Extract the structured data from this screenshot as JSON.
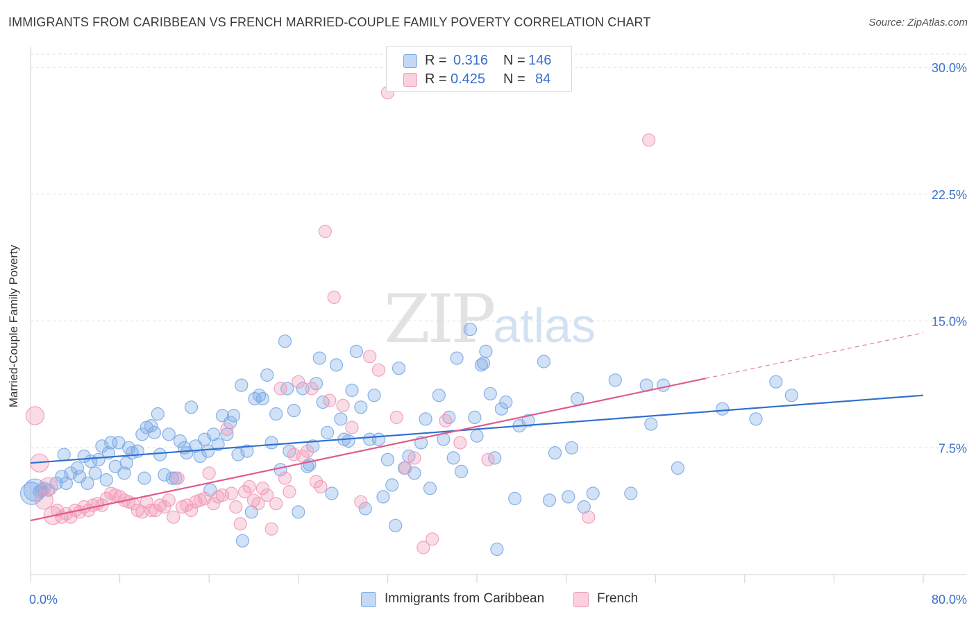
{
  "title": "IMMIGRANTS FROM CARIBBEAN VS FRENCH MARRIED-COUPLE FAMILY POVERTY CORRELATION CHART",
  "source": "Source: ZipAtlas.com",
  "watermark": {
    "zip": "ZIP",
    "atlas": "atlas"
  },
  "stats": [
    {
      "r_label": "R =",
      "r_value": "0.316",
      "n_label": "N =",
      "n_value": "146",
      "color": "#7aaae6"
    },
    {
      "r_label": "R =",
      "r_value": "0.425",
      "n_label": "N =",
      "n_value": "84",
      "color": "#f19ab8"
    }
  ],
  "legend": [
    {
      "label": "Immigrants from Caribbean",
      "color": "#7aaae6"
    },
    {
      "label": "French",
      "color": "#f19ab8"
    }
  ],
  "chart_data": {
    "type": "scatter",
    "title": "IMMIGRANTS FROM CARIBBEAN VS FRENCH MARRIED-COUPLE FAMILY POVERTY CORRELATION CHART",
    "xlabel": "",
    "ylabel": "Married-Couple Family Poverty",
    "xlim": [
      0,
      80
    ],
    "ylim": [
      0,
      30
    ],
    "x_tick_labels": [
      "0.0%",
      "80.0%"
    ],
    "y_ticks": [
      7.5,
      15,
      22.5,
      30
    ],
    "y_tick_labels": [
      "7.5%",
      "15.0%",
      "22.5%",
      "30.0%"
    ],
    "grid": "horizontal-dashed",
    "legend_position": "bottom-center",
    "series": [
      {
        "name": "Immigrants from Caribbean",
        "color": "#7aaae6",
        "line_color": "#2f6fd0",
        "trend": {
          "x": [
            0,
            80
          ],
          "y": [
            6.6,
            10.6
          ]
        },
        "points": [
          [
            0.1,
            4.8
          ],
          [
            0.4,
            5.0
          ],
          [
            0.8,
            4.9
          ],
          [
            1.0,
            5.0
          ],
          [
            1.2,
            5.1
          ],
          [
            1.6,
            5.0
          ],
          [
            2.3,
            5.4
          ],
          [
            2.8,
            5.8
          ],
          [
            3.0,
            7.1
          ],
          [
            3.2,
            5.4
          ],
          [
            3.6,
            6.0
          ],
          [
            4.2,
            6.3
          ],
          [
            4.4,
            5.8
          ],
          [
            4.8,
            7.0
          ],
          [
            5.1,
            5.4
          ],
          [
            5.4,
            6.7
          ],
          [
            5.8,
            6.0
          ],
          [
            6.1,
            6.8
          ],
          [
            6.4,
            7.6
          ],
          [
            6.8,
            5.6
          ],
          [
            7.0,
            7.2
          ],
          [
            7.2,
            7.8
          ],
          [
            7.6,
            6.4
          ],
          [
            7.9,
            7.8
          ],
          [
            8.4,
            6.0
          ],
          [
            8.6,
            6.6
          ],
          [
            8.8,
            7.5
          ],
          [
            9.1,
            7.2
          ],
          [
            9.6,
            7.3
          ],
          [
            10.0,
            8.3
          ],
          [
            10.2,
            5.7
          ],
          [
            10.4,
            8.7
          ],
          [
            10.8,
            8.8
          ],
          [
            11.1,
            8.4
          ],
          [
            11.4,
            9.5
          ],
          [
            11.6,
            7.1
          ],
          [
            12.0,
            5.9
          ],
          [
            12.4,
            8.3
          ],
          [
            12.7,
            5.7
          ],
          [
            13.0,
            5.7
          ],
          [
            13.4,
            7.9
          ],
          [
            13.8,
            7.5
          ],
          [
            14.0,
            7.2
          ],
          [
            14.4,
            9.9
          ],
          [
            14.8,
            7.6
          ],
          [
            15.2,
            7.0
          ],
          [
            15.6,
            8.0
          ],
          [
            15.9,
            7.3
          ],
          [
            16.1,
            5.0
          ],
          [
            16.4,
            8.3
          ],
          [
            16.8,
            7.7
          ],
          [
            17.2,
            9.4
          ],
          [
            17.6,
            8.3
          ],
          [
            17.9,
            9.0
          ],
          [
            18.2,
            9.4
          ],
          [
            18.6,
            7.1
          ],
          [
            18.9,
            11.2
          ],
          [
            19.0,
            2.0
          ],
          [
            19.4,
            7.3
          ],
          [
            19.8,
            3.7
          ],
          [
            20.1,
            10.4
          ],
          [
            20.5,
            10.6
          ],
          [
            20.8,
            10.4
          ],
          [
            21.2,
            11.8
          ],
          [
            21.6,
            7.8
          ],
          [
            22.0,
            9.5
          ],
          [
            22.4,
            6.2
          ],
          [
            22.8,
            13.8
          ],
          [
            23.0,
            11.0
          ],
          [
            23.2,
            7.3
          ],
          [
            23.6,
            9.7
          ],
          [
            24.0,
            3.7
          ],
          [
            24.4,
            11.0
          ],
          [
            24.8,
            6.4
          ],
          [
            25.0,
            6.5
          ],
          [
            25.3,
            7.6
          ],
          [
            25.6,
            11.3
          ],
          [
            25.9,
            12.8
          ],
          [
            26.2,
            10.2
          ],
          [
            26.6,
            8.4
          ],
          [
            27.0,
            4.8
          ],
          [
            27.4,
            12.4
          ],
          [
            27.8,
            9.2
          ],
          [
            28.1,
            8.0
          ],
          [
            28.5,
            7.9
          ],
          [
            28.8,
            10.9
          ],
          [
            29.2,
            13.2
          ],
          [
            29.6,
            9.9
          ],
          [
            30.0,
            3.9
          ],
          [
            30.4,
            8.0
          ],
          [
            30.8,
            10.6
          ],
          [
            31.2,
            8.0
          ],
          [
            31.6,
            4.6
          ],
          [
            32.0,
            6.8
          ],
          [
            32.4,
            5.3
          ],
          [
            32.7,
            2.9
          ],
          [
            33.0,
            12.2
          ],
          [
            33.5,
            6.3
          ],
          [
            33.9,
            7.0
          ],
          [
            34.4,
            6.0
          ],
          [
            35.0,
            7.8
          ],
          [
            35.4,
            9.2
          ],
          [
            35.8,
            5.1
          ],
          [
            36.6,
            10.6
          ],
          [
            37.0,
            8.0
          ],
          [
            37.5,
            9.3
          ],
          [
            37.9,
            6.9
          ],
          [
            38.2,
            12.8
          ],
          [
            38.6,
            6.1
          ],
          [
            39.4,
            14.5
          ],
          [
            39.8,
            9.3
          ],
          [
            40.0,
            8.2
          ],
          [
            40.4,
            12.4
          ],
          [
            40.6,
            12.5
          ],
          [
            40.8,
            13.2
          ],
          [
            41.2,
            10.7
          ],
          [
            41.6,
            6.9
          ],
          [
            41.8,
            1.5
          ],
          [
            42.2,
            9.8
          ],
          [
            42.6,
            10.2
          ],
          [
            43.4,
            4.5
          ],
          [
            43.8,
            8.8
          ],
          [
            44.6,
            9.1
          ],
          [
            46.0,
            12.6
          ],
          [
            46.5,
            4.4
          ],
          [
            47.0,
            7.2
          ],
          [
            48.2,
            4.6
          ],
          [
            48.5,
            7.5
          ],
          [
            49.0,
            10.4
          ],
          [
            49.6,
            4.0
          ],
          [
            50.4,
            4.8
          ],
          [
            52.4,
            11.5
          ],
          [
            53.8,
            4.8
          ],
          [
            55.2,
            11.2
          ],
          [
            55.6,
            8.9
          ],
          [
            56.7,
            11.2
          ],
          [
            58.0,
            6.3
          ],
          [
            62.0,
            9.8
          ],
          [
            65.0,
            9.2
          ],
          [
            66.8,
            11.4
          ],
          [
            68.2,
            10.6
          ]
        ]
      },
      {
        "name": "French",
        "color": "#f19ab8",
        "line_color": "#e05a8e",
        "trend": {
          "x": [
            0,
            60.5
          ],
          "y": [
            3.2,
            11.6
          ]
        },
        "trend_dashed": {
          "x": [
            60.5,
            80
          ],
          "y": [
            11.6,
            14.3
          ]
        },
        "points": [
          [
            0.4,
            9.4
          ],
          [
            0.8,
            6.6
          ],
          [
            1.2,
            4.4
          ],
          [
            1.6,
            5.2
          ],
          [
            2.0,
            3.5
          ],
          [
            2.4,
            3.8
          ],
          [
            2.8,
            3.4
          ],
          [
            3.2,
            3.6
          ],
          [
            3.6,
            3.4
          ],
          [
            4.0,
            3.8
          ],
          [
            4.4,
            3.7
          ],
          [
            4.8,
            4.0
          ],
          [
            5.2,
            3.8
          ],
          [
            5.6,
            4.1
          ],
          [
            6.0,
            4.2
          ],
          [
            6.4,
            4.1
          ],
          [
            6.8,
            4.5
          ],
          [
            7.2,
            4.8
          ],
          [
            7.6,
            4.7
          ],
          [
            8.0,
            4.6
          ],
          [
            8.4,
            4.4
          ],
          [
            8.8,
            4.3
          ],
          [
            9.2,
            4.2
          ],
          [
            9.6,
            3.8
          ],
          [
            10.0,
            3.7
          ],
          [
            10.4,
            4.3
          ],
          [
            10.8,
            3.8
          ],
          [
            11.2,
            3.8
          ],
          [
            11.6,
            4.1
          ],
          [
            12.0,
            4.0
          ],
          [
            12.4,
            4.4
          ],
          [
            12.8,
            3.4
          ],
          [
            13.2,
            5.7
          ],
          [
            13.6,
            4.0
          ],
          [
            14.0,
            4.1
          ],
          [
            14.4,
            3.8
          ],
          [
            14.8,
            4.3
          ],
          [
            15.2,
            4.4
          ],
          [
            15.6,
            4.5
          ],
          [
            16.0,
            6.0
          ],
          [
            16.4,
            4.2
          ],
          [
            16.8,
            4.6
          ],
          [
            17.2,
            4.7
          ],
          [
            17.6,
            8.6
          ],
          [
            18.0,
            4.8
          ],
          [
            18.4,
            4.0
          ],
          [
            18.8,
            3.0
          ],
          [
            19.2,
            4.9
          ],
          [
            19.6,
            5.2
          ],
          [
            20.0,
            4.4
          ],
          [
            20.4,
            4.2
          ],
          [
            20.8,
            5.1
          ],
          [
            21.2,
            4.7
          ],
          [
            21.6,
            2.7
          ],
          [
            22.0,
            4.2
          ],
          [
            22.4,
            11.0
          ],
          [
            22.8,
            5.7
          ],
          [
            23.2,
            4.9
          ],
          [
            23.6,
            7.1
          ],
          [
            24.0,
            11.4
          ],
          [
            24.4,
            7.0
          ],
          [
            24.8,
            7.3
          ],
          [
            25.2,
            11.0
          ],
          [
            25.6,
            5.5
          ],
          [
            26.0,
            5.2
          ],
          [
            26.4,
            20.3
          ],
          [
            26.8,
            10.3
          ],
          [
            27.2,
            16.4
          ],
          [
            28.0,
            10.0
          ],
          [
            28.8,
            8.7
          ],
          [
            29.6,
            4.3
          ],
          [
            30.4,
            12.9
          ],
          [
            31.2,
            12.1
          ],
          [
            32.0,
            28.5
          ],
          [
            32.8,
            9.3
          ],
          [
            33.6,
            6.3
          ],
          [
            34.4,
            6.9
          ],
          [
            35.2,
            1.6
          ],
          [
            36.0,
            2.1
          ],
          [
            37.2,
            9.1
          ],
          [
            38.5,
            7.8
          ],
          [
            41.0,
            6.8
          ],
          [
            50.0,
            3.4
          ],
          [
            55.4,
            25.7
          ]
        ]
      }
    ]
  }
}
